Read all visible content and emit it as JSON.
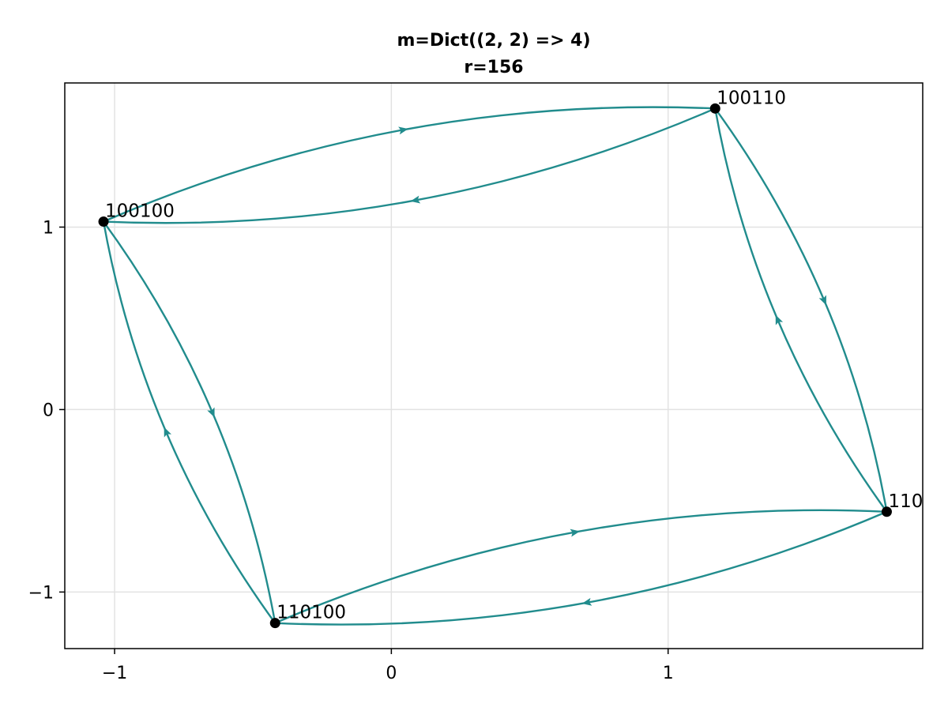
{
  "title_line1": "m=Dict((2, 2) => 4)",
  "title_line2": "r=156",
  "colors": {
    "edge": "#218c8d",
    "node": "#000000",
    "grid": "#e2e2e2"
  },
  "chart_data": {
    "type": "scatter",
    "xlim": [
      -1.18,
      1.92
    ],
    "ylim": [
      -1.31,
      1.79
    ],
    "x_ticks": [
      {
        "value": -1,
        "label": "−1"
      },
      {
        "value": 0,
        "label": "0"
      },
      {
        "value": 1,
        "label": "1"
      }
    ],
    "y_ticks": [
      {
        "value": -1,
        "label": "−1"
      },
      {
        "value": 0,
        "label": "0"
      },
      {
        "value": 1,
        "label": "1"
      }
    ],
    "grid": true,
    "nodes": [
      {
        "id": "100100",
        "label": "100100",
        "x": -1.04,
        "y": 1.03
      },
      {
        "id": "100110",
        "label": "100110",
        "x": 1.17,
        "y": 1.65
      },
      {
        "id": "110",
        "label": "110",
        "x": 1.79,
        "y": -0.56
      },
      {
        "id": "110100",
        "label": "110100",
        "x": -0.42,
        "y": -1.17
      }
    ],
    "edges": [
      {
        "from": "100100",
        "to": "100110"
      },
      {
        "from": "100110",
        "to": "100100"
      },
      {
        "from": "100110",
        "to": "110"
      },
      {
        "from": "110",
        "to": "100110"
      },
      {
        "from": "110",
        "to": "110100"
      },
      {
        "from": "110100",
        "to": "110"
      },
      {
        "from": "110100",
        "to": "100100"
      },
      {
        "from": "100100",
        "to": "110100"
      }
    ]
  }
}
